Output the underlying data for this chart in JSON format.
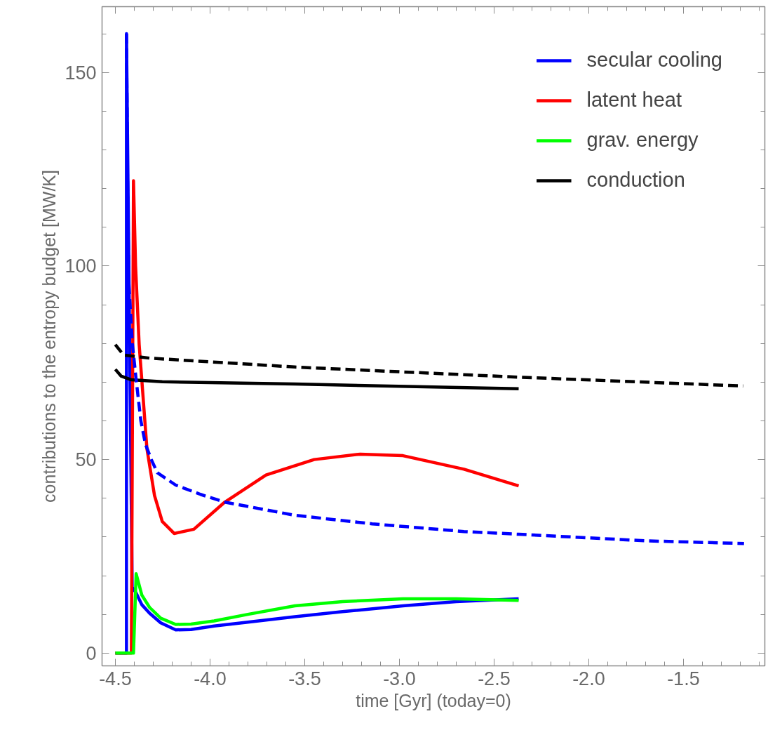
{
  "chart_data": {
    "type": "line",
    "xlabel": "time [Gyr] (today=0)",
    "ylabel": "contributions to the entropy budget [MW/K]",
    "xlim": [
      -4.57,
      -1.07
    ],
    "ylim": [
      -3.3,
      167
    ],
    "xticks": [
      {
        "value": -4.5,
        "label": "-4.5"
      },
      {
        "value": -4.0,
        "label": "-4.0"
      },
      {
        "value": -3.5,
        "label": "-3.5"
      },
      {
        "value": -3.0,
        "label": "-3.0"
      },
      {
        "value": -2.5,
        "label": "-2.5"
      },
      {
        "value": -2.0,
        "label": "-2.0"
      },
      {
        "value": -1.5,
        "label": "-1.5"
      },
      {
        "value": -4.4,
        "label": null
      },
      {
        "value": -4.3,
        "label": null
      },
      {
        "value": -4.2,
        "label": null
      },
      {
        "value": -4.1,
        "label": null
      },
      {
        "value": -3.9,
        "label": null
      },
      {
        "value": -3.8,
        "label": null
      },
      {
        "value": -3.7,
        "label": null
      },
      {
        "value": -3.6,
        "label": null
      },
      {
        "value": -3.4,
        "label": null
      },
      {
        "value": -3.3,
        "label": null
      },
      {
        "value": -3.2,
        "label": null
      },
      {
        "value": -3.1,
        "label": null
      },
      {
        "value": -2.9,
        "label": null
      },
      {
        "value": -2.8,
        "label": null
      },
      {
        "value": -2.7,
        "label": null
      },
      {
        "value": -2.6,
        "label": null
      },
      {
        "value": -2.4,
        "label": null
      },
      {
        "value": -2.3,
        "label": null
      },
      {
        "value": -2.2,
        "label": null
      },
      {
        "value": -2.1,
        "label": null
      },
      {
        "value": -1.9,
        "label": null
      },
      {
        "value": -1.8,
        "label": null
      },
      {
        "value": -1.7,
        "label": null
      },
      {
        "value": -1.6,
        "label": null
      },
      {
        "value": -1.4,
        "label": null
      },
      {
        "value": -1.3,
        "label": null
      },
      {
        "value": -1.2,
        "label": null
      },
      {
        "value": -1.1,
        "label": null
      }
    ],
    "yticks": [
      0,
      50,
      100,
      150,
      {
        "value": 10,
        "label": null
      },
      {
        "value": 20,
        "label": null
      },
      {
        "value": 30,
        "label": null
      },
      {
        "value": 40,
        "label": null
      },
      {
        "value": 60,
        "label": null
      },
      {
        "value": 70,
        "label": null
      },
      {
        "value": 80,
        "label": null
      },
      {
        "value": 90,
        "label": null
      },
      {
        "value": 110,
        "label": null
      },
      {
        "value": 120,
        "label": null
      },
      {
        "value": 130,
        "label": null
      },
      {
        "value": 140,
        "label": null
      },
      {
        "value": 160,
        "label": null
      }
    ],
    "legend": "top right",
    "series": [
      {
        "name": "secular cooling",
        "color": "#0000ff",
        "line_style": "solid",
        "x": [
          -4.5,
          -4.441,
          -4.441,
          -4.411,
          -4.39,
          -4.36,
          -4.319,
          -4.26,
          -4.181,
          -4.1,
          -3.978,
          -3.8,
          -3.552,
          -3.3,
          -2.981,
          -2.7,
          -2.37
        ],
        "values": [
          0,
          0,
          160,
          17,
          15.5,
          12.5,
          10.3,
          7.8,
          6,
          6.1,
          7,
          8,
          9.4,
          10.7,
          12.2,
          13.3,
          14
        ]
      },
      {
        "name": "latent heat",
        "color": "#ff0000",
        "line_style": "solid",
        "x": [
          -4.5,
          -4.415,
          -4.404,
          -4.393,
          -4.374,
          -4.333,
          -4.293,
          -4.252,
          -4.189,
          -4.085,
          -3.922,
          -3.704,
          -3.45,
          -3.207,
          -2.981,
          -2.659,
          -2.37
        ],
        "values": [
          0,
          0,
          122,
          100,
          79.7,
          52.8,
          40.7,
          34,
          30.9,
          32,
          39,
          46,
          50,
          51.4,
          51,
          47.5,
          43.2
        ]
      },
      {
        "name": "grav. energy",
        "color": "#00ff00",
        "line_style": "solid",
        "x": [
          -4.5,
          -4.404,
          -4.39,
          -4.36,
          -4.319,
          -4.26,
          -4.181,
          -4.1,
          -3.978,
          -3.8,
          -3.552,
          -3.3,
          -2.981,
          -2.7,
          -2.37
        ],
        "values": [
          0,
          0,
          20.5,
          15,
          11.8,
          9,
          7.4,
          7.5,
          8.3,
          10,
          12.2,
          13.3,
          14,
          14,
          13.6
        ]
      },
      {
        "name": "conduction",
        "color": "#000000",
        "line_style": "solid",
        "x": [
          -4.5,
          -4.47,
          -4.415,
          -4.252,
          -3.552,
          -2.37
        ],
        "values": [
          73.3,
          71.6,
          70.6,
          70.1,
          69.5,
          68.3
        ]
      },
      {
        "color": "#0000ff",
        "line_style": "dashed",
        "x": [
          -4.441,
          -4.435,
          -4.428,
          -4.41,
          -4.389,
          -4.365,
          -4.341,
          -4.31,
          -4.278,
          -4.181,
          -4.05,
          -3.922,
          -3.552,
          -3.144,
          -2.659,
          -2.37,
          -2.015,
          -1.693,
          -1.18
        ],
        "values": [
          160,
          120,
          95,
          80,
          70.2,
          60,
          54,
          50,
          46.6,
          43.4,
          41,
          39,
          35.6,
          33.4,
          31.4,
          30.7,
          29.8,
          29.0,
          28.3
        ]
      },
      {
        "color": "#000000",
        "line_style": "dashed",
        "x": [
          -4.5,
          -4.456,
          -4.319,
          -3.552,
          -2.378,
          -1.185
        ],
        "values": [
          79.7,
          77,
          76.2,
          73.9,
          71.3,
          69
        ]
      }
    ]
  }
}
